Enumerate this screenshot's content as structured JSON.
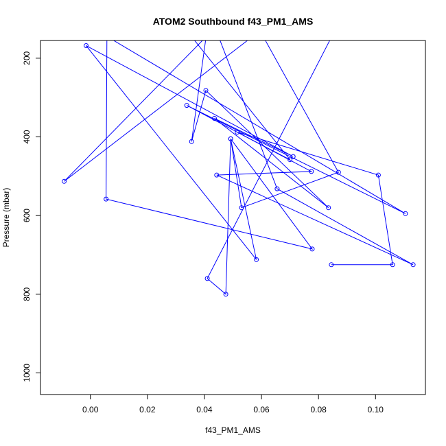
{
  "chart_data": {
    "type": "line",
    "title": "ATOM2 Southbound f43_PM1_AMS",
    "xlabel": "f43_PM1_AMS",
    "ylabel": "Pressure (mbar)",
    "xlim": [
      -0.0175,
      0.1175
    ],
    "ylim_inverted": [
      1055,
      155
    ],
    "x_ticks": [
      0.0,
      0.02,
      0.04,
      0.06,
      0.08,
      0.1
    ],
    "x_tick_labels": [
      "0.00",
      "0.02",
      "0.04",
      "0.06",
      "0.08",
      "0.10"
    ],
    "y_ticks": [
      200,
      400,
      600,
      800,
      1000
    ],
    "y_tick_labels": [
      "200",
      "400",
      "600",
      "800",
      "1000"
    ],
    "grid": false,
    "color": "#0000ff",
    "series": [
      {
        "points": [
          {
            "x": 0.0843,
            "y": 150,
            "marker": false
          },
          {
            "x": 0.041,
            "y": 760
          },
          {
            "x": 0.0475,
            "y": 800
          },
          {
            "x": 0.0492,
            "y": 405
          },
          {
            "x": 0.0582,
            "y": 712
          },
          {
            "x": -0.0015,
            "y": 168
          },
          {
            "x": 0.0711,
            "y": 450
          },
          {
            "x": 0.0435,
            "y": 353
          },
          {
            "x": 0.0835,
            "y": 580
          },
          {
            "x": 0.0405,
            "y": 282
          },
          {
            "x": 0.0355,
            "y": 412
          },
          {
            "x": 0.0405,
            "y": 150,
            "marker": false
          }
        ]
      },
      {
        "points": [
          {
            "x": 0.0058,
            "y": 150,
            "marker": false
          },
          {
            "x": 0.0055,
            "y": 558
          },
          {
            "x": 0.0778,
            "y": 685
          },
          {
            "x": 0.0492,
            "y": 405
          },
          {
            "x": 0.053,
            "y": 580
          },
          {
            "x": 0.087,
            "y": 490
          },
          {
            "x": 0.061,
            "y": 150,
            "marker": false
          }
        ]
      },
      {
        "points": [
          {
            "x": 0.007,
            "y": 150,
            "marker": false
          },
          {
            "x": 0.1105,
            "y": 595
          },
          {
            "x": 0.0338,
            "y": 320
          },
          {
            "x": 0.0775,
            "y": 488
          },
          {
            "x": 0.0443,
            "y": 497
          },
          {
            "x": 0.1132,
            "y": 725
          },
          {
            "x": 0.0655,
            "y": 532
          },
          {
            "x": 0.0452,
            "y": 150,
            "marker": false
          }
        ]
      },
      {
        "points": [
          {
            "x": 0.04,
            "y": 150,
            "marker": false
          },
          {
            "x": -0.0092,
            "y": 513
          },
          {
            "x": 0.056,
            "y": 150,
            "marker": false
          }
        ]
      },
      {
        "points": [
          {
            "x": 0.0845,
            "y": 725
          },
          {
            "x": 0.106,
            "y": 725
          },
          {
            "x": 0.101,
            "y": 497
          },
          {
            "x": 0.0515,
            "y": 388
          },
          {
            "x": 0.07,
            "y": 458
          },
          {
            "x": 0.036,
            "y": 150,
            "marker": false
          }
        ]
      }
    ]
  }
}
